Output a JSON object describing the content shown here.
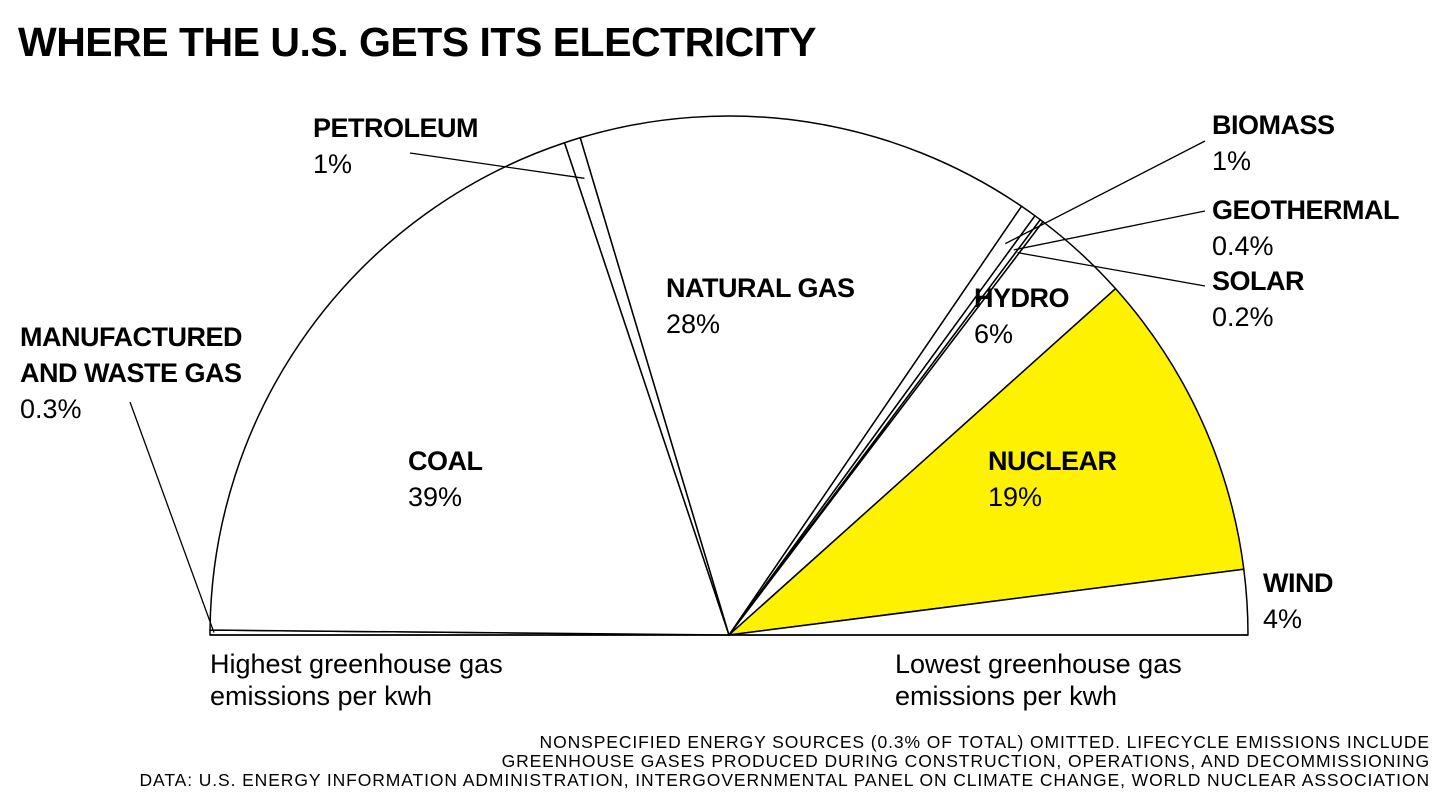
{
  "chart_data": {
    "type": "pie",
    "layout": "semicircle",
    "title": "WHERE THE U.S. GETS ITS ELECTRICITY",
    "slices": [
      {
        "name": "MANUFACTURED AND WASTE GAS",
        "value": 0.3,
        "label": "0.3%",
        "color": "#ffffff"
      },
      {
        "name": "COAL",
        "value": 39,
        "label": "39%",
        "color": "#ffffff"
      },
      {
        "name": "PETROLEUM",
        "value": 1,
        "label": "1%",
        "color": "#ffffff"
      },
      {
        "name": "NATURAL GAS",
        "value": 28,
        "label": "28%",
        "color": "#ffffff"
      },
      {
        "name": "BIOMASS",
        "value": 1,
        "label": "1%",
        "color": "#ffffff"
      },
      {
        "name": "GEOTHERMAL",
        "value": 0.4,
        "label": "0.4%",
        "color": "#ffffff"
      },
      {
        "name": "SOLAR",
        "value": 0.2,
        "label": "0.2%",
        "color": "#ffffff"
      },
      {
        "name": "HYDRO",
        "value": 6,
        "label": "6%",
        "color": "#ffffff"
      },
      {
        "name": "NUCLEAR",
        "value": 19,
        "label": "19%",
        "color": "#fff200"
      },
      {
        "name": "WIND",
        "value": 4,
        "label": "4%",
        "color": "#ffffff"
      }
    ],
    "scale_left": [
      "Highest greenhouse gas",
      "emissions per kwh"
    ],
    "scale_right": [
      "Lowest greenhouse gas",
      "emissions per kwh"
    ],
    "footnotes": [
      "NONSPECIFIED ENERGY SOURCES (0.3% OF TOTAL) OMITTED. LIFECYCLE EMISSIONS INCLUDE",
      "GREENHOUSE GASES PRODUCED DURING CONSTRUCTION, OPERATIONS, AND DECOMMISSIONING",
      "DATA: U.S. ENERGY INFORMATION ADMINISTRATION, INTERGOVERNMENTAL PANEL ON CLIMATE CHANGE, WORLD NUCLEAR ASSOCIATION"
    ]
  }
}
